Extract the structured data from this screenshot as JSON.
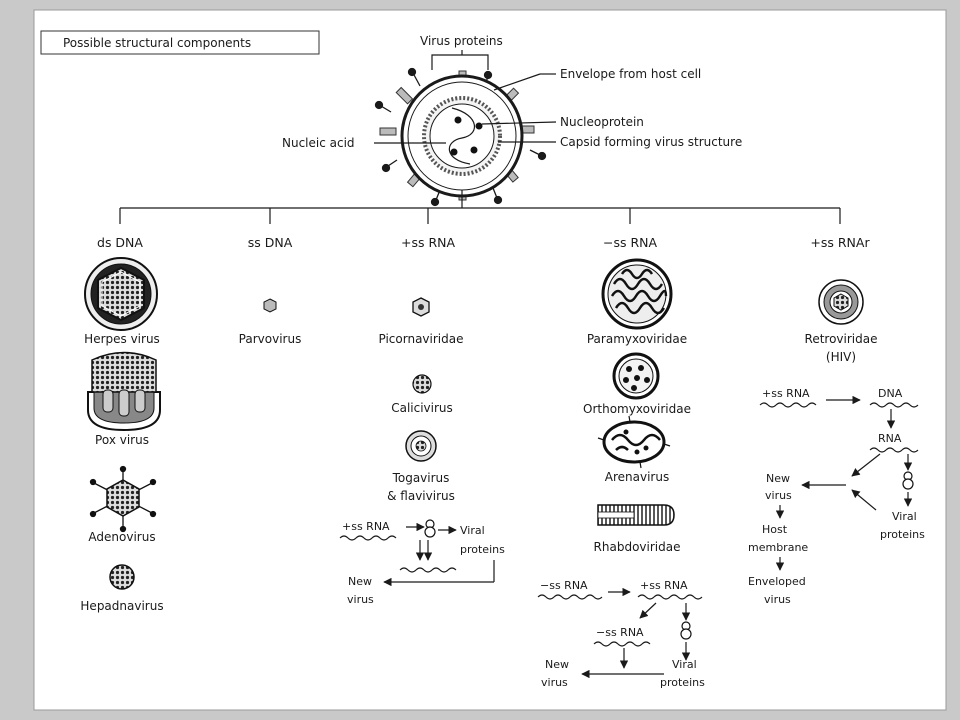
{
  "title_box": "Possible structural components",
  "virion": {
    "virus_proteins": "Virus proteins",
    "envelope": "Envelope from host cell",
    "nucleoprotein": "Nucleoprotein",
    "capsid": "Capsid forming virus structure",
    "nucleic_acid": "Nucleic acid"
  },
  "categories": [
    "ds DNA",
    "ss DNA",
    "+ss RNA",
    "−ss RNA",
    "+ss RNAr"
  ],
  "ds_dna": [
    "Herpes virus",
    "Pox virus",
    "Adenovirus",
    "Hepadnavirus"
  ],
  "ss_dna": [
    "Parvovirus"
  ],
  "pos_rna": [
    "Picornaviridae",
    "Calicivirus",
    "Togavirus",
    "& flavivirus"
  ],
  "neg_rna": [
    "Paramyxoviridae",
    "Orthomyxoviridae",
    "Arenavirus",
    "Rhabdoviridae"
  ],
  "rnar": [
    "Retroviridae",
    "(HIV)"
  ],
  "pos_flow": {
    "rna": "+ss RNA",
    "viral": "Viral",
    "proteins": "proteins",
    "new": "New",
    "virus": "virus"
  },
  "neg_flow": {
    "neg_rna": "−ss RNA",
    "pos_rna": "+ss RNA",
    "neg_rna2": "−ss RNA",
    "new": "New",
    "virus": "virus",
    "viral": "Viral",
    "proteins": "proteins"
  },
  "retro_flow": {
    "rna": "+ss RNA",
    "dna": "DNA",
    "rna2": "RNA",
    "new": "New",
    "virus": "virus",
    "host": "Host",
    "membrane": "membrane",
    "enveloped": "Enveloped",
    "env_virus": "virus",
    "viral": "Viral",
    "proteins": "proteins"
  }
}
